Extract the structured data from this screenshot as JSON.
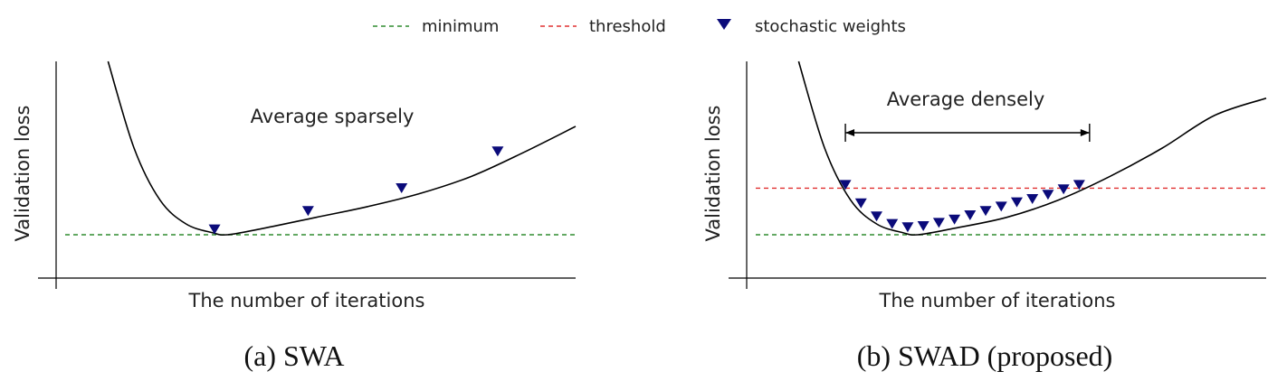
{
  "legend": {
    "items": [
      {
        "label": "minimum",
        "kind": "dashed-line",
        "color": "#2e8b2e"
      },
      {
        "label": "threshold",
        "kind": "dashed-line",
        "color": "#e03030"
      },
      {
        "label": "stochastic weights",
        "kind": "triangle-marker",
        "color": "#0b0b7a"
      }
    ]
  },
  "chart_data": [
    {
      "type": "line",
      "caption": "(a) SWA",
      "annotation": "Average sparsely",
      "xlabel": "The number of iterations",
      "ylabel": "Validation loss",
      "xlim": [
        0,
        10
      ],
      "ylim": [
        0,
        10
      ],
      "curve_color": "#000000",
      "minimum_line": {
        "y": 2.0,
        "color": "#2e8b2e"
      },
      "curve": [
        [
          1.0,
          10.0
        ],
        [
          1.5,
          6.0
        ],
        [
          2.0,
          3.6
        ],
        [
          2.5,
          2.5
        ],
        [
          3.0,
          2.1
        ],
        [
          3.3,
          2.0
        ],
        [
          4.0,
          2.3
        ],
        [
          5.0,
          2.8
        ],
        [
          6.0,
          3.3
        ],
        [
          7.0,
          3.9
        ],
        [
          8.0,
          4.7
        ],
        [
          9.0,
          5.8
        ],
        [
          10.0,
          7.0
        ]
      ],
      "markers": {
        "name": "stochastic weights",
        "color": "#0b0b7a",
        "points": [
          [
            3.05,
            2.1
          ],
          [
            4.85,
            2.95
          ],
          [
            6.65,
            4.0
          ],
          [
            8.5,
            5.7
          ]
        ]
      }
    },
    {
      "type": "line",
      "caption": "(b) SWAD (proposed)",
      "annotation": "Average densely",
      "xlabel": "The number of iterations",
      "ylabel": "Validation loss",
      "xlim": [
        0,
        10
      ],
      "ylim": [
        0,
        10
      ],
      "curve_color": "#000000",
      "minimum_line": {
        "y": 2.0,
        "color": "#2e8b2e"
      },
      "threshold_line": {
        "y": 4.15,
        "color": "#e03030"
      },
      "range_arrow": {
        "x_start": 1.9,
        "x_end": 6.6
      },
      "curve": [
        [
          1.0,
          10.0
        ],
        [
          1.5,
          6.0
        ],
        [
          2.0,
          3.6
        ],
        [
          2.5,
          2.5
        ],
        [
          3.0,
          2.1
        ],
        [
          3.3,
          2.0
        ],
        [
          4.0,
          2.3
        ],
        [
          5.0,
          2.8
        ],
        [
          6.0,
          3.6
        ],
        [
          7.0,
          4.7
        ],
        [
          8.0,
          6.0
        ],
        [
          9.0,
          7.5
        ],
        [
          10.0,
          8.3
        ]
      ],
      "markers": {
        "name": "stochastic weights",
        "color": "#0b0b7a",
        "points": [
          [
            1.9,
            4.15
          ],
          [
            2.2,
            3.3
          ],
          [
            2.5,
            2.7
          ],
          [
            2.8,
            2.35
          ],
          [
            3.1,
            2.2
          ],
          [
            3.4,
            2.25
          ],
          [
            3.7,
            2.4
          ],
          [
            4.0,
            2.55
          ],
          [
            4.3,
            2.75
          ],
          [
            4.6,
            2.95
          ],
          [
            4.9,
            3.15
          ],
          [
            5.2,
            3.35
          ],
          [
            5.5,
            3.5
          ],
          [
            5.8,
            3.7
          ],
          [
            6.1,
            3.95
          ],
          [
            6.4,
            4.15
          ]
        ]
      }
    }
  ]
}
